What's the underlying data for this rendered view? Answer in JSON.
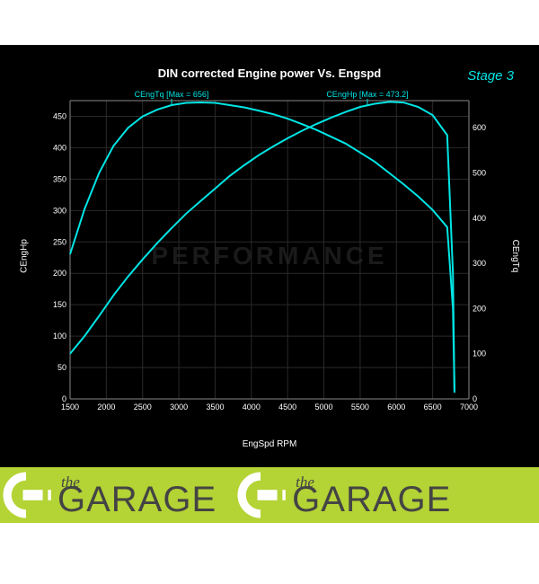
{
  "chart": {
    "title": "DIN corrected Engine power Vs. Engspd",
    "stage_label": "Stage 3",
    "type": "line",
    "background_color": "#000000",
    "watermark_text": "PERFORMANCE",
    "x_axis": {
      "label": "EngSpd RPM",
      "min": 1500,
      "max": 7000,
      "tick_step": 500,
      "ticks": [
        1500,
        2000,
        2500,
        3000,
        3500,
        4000,
        4500,
        5000,
        5500,
        6000,
        6500,
        7000
      ]
    },
    "y1_axis": {
      "label": "CEngHp",
      "min": 0,
      "max": 475,
      "ticks": [
        0,
        50,
        100,
        150,
        200,
        250,
        300,
        350,
        400,
        450
      ]
    },
    "y2_axis": {
      "label": "CEngTq",
      "min": 0,
      "max": 660,
      "ticks": [
        0,
        100,
        200,
        300,
        400,
        500,
        600
      ]
    },
    "grid_color": "#2a2a2a",
    "axis_color": "#888888",
    "text_color": "#ffffff",
    "series": [
      {
        "name": "CEngTq",
        "axis": "y2",
        "color": "#00e5e5",
        "line_width": 2,
        "peak_label": "CEngTq [Max = 656]",
        "peak_label_x": 2900,
        "data": [
          [
            1500,
            320
          ],
          [
            1700,
            420
          ],
          [
            1900,
            500
          ],
          [
            2100,
            560
          ],
          [
            2300,
            600
          ],
          [
            2500,
            625
          ],
          [
            2700,
            640
          ],
          [
            2900,
            650
          ],
          [
            3100,
            655
          ],
          [
            3300,
            656
          ],
          [
            3500,
            655
          ],
          [
            3700,
            650
          ],
          [
            3900,
            645
          ],
          [
            4100,
            638
          ],
          [
            4300,
            630
          ],
          [
            4500,
            620
          ],
          [
            4700,
            608
          ],
          [
            4900,
            595
          ],
          [
            5100,
            580
          ],
          [
            5300,
            565
          ],
          [
            5500,
            545
          ],
          [
            5700,
            525
          ],
          [
            5900,
            500
          ],
          [
            6100,
            475
          ],
          [
            6300,
            448
          ],
          [
            6500,
            418
          ],
          [
            6700,
            380
          ],
          [
            6780,
            200
          ],
          [
            6800,
            20
          ]
        ]
      },
      {
        "name": "CEngHp",
        "axis": "y1",
        "color": "#00e5e5",
        "line_width": 2,
        "peak_label": "CEngHp [Max = 473.2]",
        "peak_label_x": 5600,
        "data": [
          [
            1500,
            72
          ],
          [
            1700,
            100
          ],
          [
            1900,
            132
          ],
          [
            2100,
            165
          ],
          [
            2300,
            195
          ],
          [
            2500,
            222
          ],
          [
            2700,
            248
          ],
          [
            2900,
            272
          ],
          [
            3100,
            295
          ],
          [
            3300,
            315
          ],
          [
            3500,
            335
          ],
          [
            3700,
            355
          ],
          [
            3900,
            372
          ],
          [
            4100,
            388
          ],
          [
            4300,
            402
          ],
          [
            4500,
            415
          ],
          [
            4700,
            427
          ],
          [
            4900,
            438
          ],
          [
            5100,
            448
          ],
          [
            5300,
            457
          ],
          [
            5500,
            465
          ],
          [
            5700,
            470
          ],
          [
            5900,
            473
          ],
          [
            6100,
            472
          ],
          [
            6300,
            465
          ],
          [
            6500,
            452
          ],
          [
            6700,
            420
          ],
          [
            6780,
            200
          ],
          [
            6800,
            10
          ]
        ]
      }
    ]
  },
  "footer": {
    "background_color": "#b4d335",
    "logo_small": "the",
    "logo_big": "GARAGE",
    "icon_color": "#ffffff",
    "text_color": "#444444"
  }
}
